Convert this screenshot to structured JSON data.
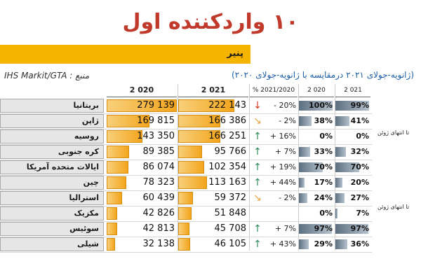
{
  "title": "۱۰ واردکننده اول",
  "band_label": "پنیر",
  "source": "IHS Markit/GTA : منبع",
  "subtitle": "(ژانویه-جولای ۲۰۲۱ درمقایسه با ژانویه-جولای ۲۰۲۰)",
  "headers": {
    "y2020": "2 020",
    "y2021": "2 021",
    "change": "% 2021/2020",
    "share2020": "2 020",
    "share2021": "2 021"
  },
  "side_notes": [
    "تا انتهای ژوئن",
    "تا انتهای ژوئن"
  ],
  "colors": {
    "up": "#2e8b57",
    "down": "#d9381e",
    "flat": "#e8a33d",
    "bar": "#f3a51c"
  },
  "rows": [
    {
      "name": "بریتانیا",
      "v2020": "279 139",
      "v2021": "222 143",
      "n2020": 279139,
      "n2021": 222143,
      "change": "- 20%",
      "arrow": "down",
      "s2020": "100%",
      "s2021": "99%",
      "p2020": 100,
      "p2021": 99
    },
    {
      "name": "ژاپن",
      "v2020": "169 815",
      "v2021": "166 386",
      "n2020": 169815,
      "n2021": 166386,
      "change": "- 2%",
      "arrow": "flat",
      "s2020": "38%",
      "s2021": "41%",
      "p2020": 38,
      "p2021": 41
    },
    {
      "name": "روسیه",
      "v2020": "143 350",
      "v2021": "166 251",
      "n2020": 143350,
      "n2021": 166251,
      "change": "+ 16%",
      "arrow": "up",
      "s2020": "0%",
      "s2021": "0%",
      "p2020": 0,
      "p2021": 0
    },
    {
      "name": "کره جنوبی",
      "v2020": "89 385",
      "v2021": "95 766",
      "n2020": 89385,
      "n2021": 95766,
      "change": "+ 7%",
      "arrow": "up",
      "s2020": "33%",
      "s2021": "32%",
      "p2020": 33,
      "p2021": 32
    },
    {
      "name": "ایالات متحده آمریکا",
      "v2020": "86 074",
      "v2021": "102 354",
      "n2020": 86074,
      "n2021": 102354,
      "change": "+ 19%",
      "arrow": "up",
      "s2020": "70%",
      "s2021": "70%",
      "p2020": 70,
      "p2021": 70
    },
    {
      "name": "چین",
      "v2020": "78 323",
      "v2021": "113 163",
      "n2020": 78323,
      "n2021": 113163,
      "change": "+ 44%",
      "arrow": "up",
      "s2020": "17%",
      "s2021": "20%",
      "p2020": 17,
      "p2021": 20
    },
    {
      "name": "استرالیا",
      "v2020": "60 439",
      "v2021": "59 372",
      "n2020": 60439,
      "n2021": 59372,
      "change": "- 2%",
      "arrow": "flat",
      "s2020": "24%",
      "s2021": "27%",
      "p2020": 24,
      "p2021": 27
    },
    {
      "name": "مکزیک",
      "v2020": "42 826",
      "v2021": "51 848",
      "n2020": 42826,
      "n2021": 51848,
      "change": "",
      "arrow": "",
      "s2020": "0%",
      "s2021": "7%",
      "p2020": 0,
      "p2021": 7
    },
    {
      "name": "سوئیس",
      "v2020": "42 813",
      "v2021": "45 708",
      "n2020": 42813,
      "n2021": 45708,
      "change": "+ 7%",
      "arrow": "up",
      "s2020": "97%",
      "s2021": "97%",
      "p2020": 97,
      "p2021": 97
    },
    {
      "name": "شیلی",
      "v2020": "32 138",
      "v2021": "46 105",
      "n2020": 32138,
      "n2021": 46105,
      "change": "+ 43%",
      "arrow": "up",
      "s2020": "29%",
      "s2021": "36%",
      "p2020": 29,
      "p2021": 36
    }
  ]
}
